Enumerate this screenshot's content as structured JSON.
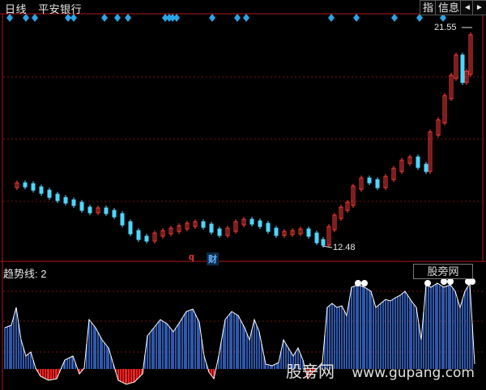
{
  "header": {
    "period": "日线",
    "stock_name": "平安银行",
    "btn_zhi": "指",
    "btn_info": "信息",
    "nav_prev": "◄",
    "nav_next": "►"
  },
  "price_panel": {
    "high_label": "21.55",
    "low_label": "12.48",
    "marker_q": "q",
    "marker_cai": "财",
    "colors": {
      "up": "#ff3b3b",
      "down": "#4fd6ff",
      "grid": "#7a1010",
      "diamond": "#29a6e8"
    }
  },
  "indicator_panel": {
    "title": "趋势线: 2",
    "site_label": "股旁网",
    "colors": {
      "positive": "#3b6fd8",
      "negative": "#ff1e1e",
      "line": "#ffffff"
    }
  },
  "watermark": {
    "name": "股旁网",
    "url": "www.gupang.com"
  }
}
